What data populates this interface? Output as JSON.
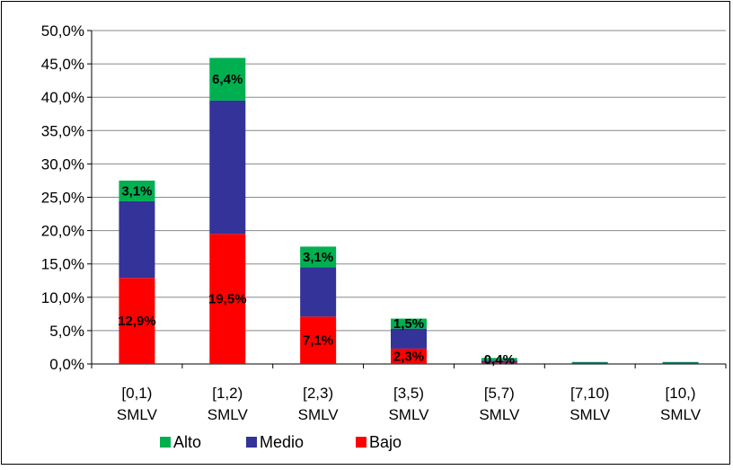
{
  "chart_data": {
    "type": "bar",
    "stacked": true,
    "categories": [
      [
        "[0,1)",
        "SMLV"
      ],
      [
        "[1,2)",
        "SMLV"
      ],
      [
        "[2,3)",
        "SMLV"
      ],
      [
        "[3,5)",
        "SMLV"
      ],
      [
        "[5,7)",
        "SMLV"
      ],
      [
        "[7,10)",
        "SMLV"
      ],
      [
        "[10,)",
        "SMLV"
      ]
    ],
    "ylim": [
      0,
      50
    ],
    "yticks": [
      "0,0%",
      "5,0%",
      "10,0%",
      "15,0%",
      "20,0%",
      "25,0%",
      "30,0%",
      "35,0%",
      "40,0%",
      "45,0%",
      "50,0%"
    ],
    "grid": true,
    "legend_position": "bottom",
    "series": [
      {
        "name": "Bajo",
        "color": "#ff0000",
        "values": [
          12.9,
          19.5,
          7.1,
          2.3,
          0.2,
          0.0,
          0.0
        ],
        "labels": [
          "12,9%",
          "19,5%",
          "7,1%",
          "2,3%",
          "",
          "",
          ""
        ]
      },
      {
        "name": "Medio",
        "color": "#333399",
        "values": [
          11.5,
          20.0,
          7.4,
          3.0,
          0.3,
          0.2,
          0.2
        ],
        "labels": [
          "",
          "",
          "",
          "",
          "",
          "",
          ""
        ]
      },
      {
        "name": "Alto",
        "color": "#00b050",
        "values": [
          3.1,
          6.4,
          3.1,
          1.5,
          0.4,
          0.1,
          0.1
        ],
        "labels": [
          "3,1%",
          "6,4%",
          "3,1%",
          "1,5%",
          "0,4%",
          "",
          ""
        ]
      }
    ],
    "legend_order": [
      "Alto",
      "Medio",
      "Bajo"
    ]
  }
}
